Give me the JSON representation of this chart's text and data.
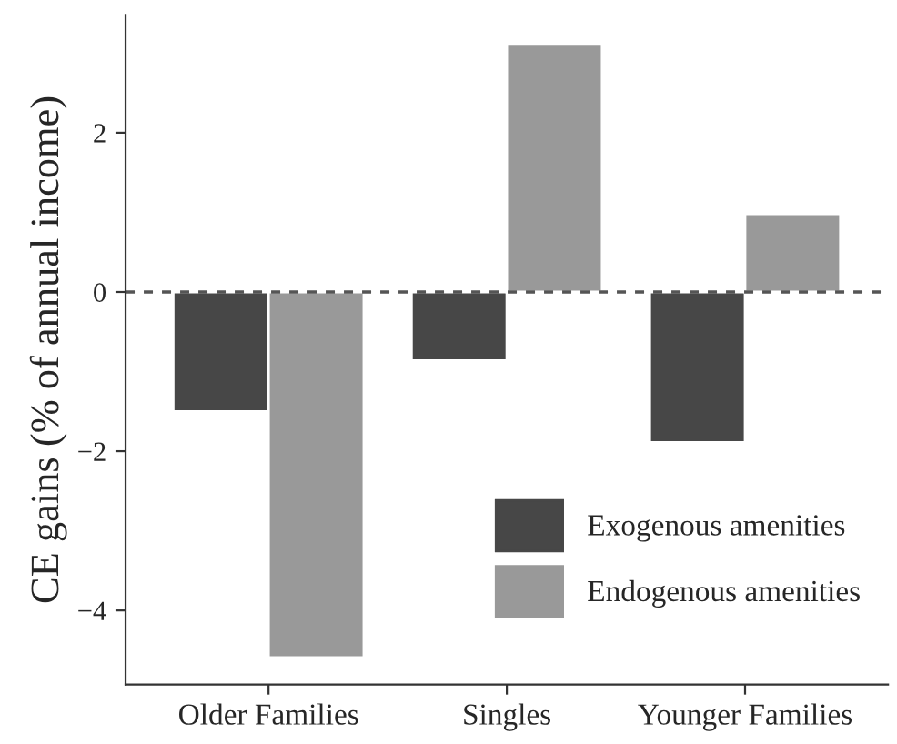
{
  "chart_data": {
    "type": "bar",
    "ylabel": "CE gains (% of annual income)",
    "categories": [
      "Older Families",
      "Singles",
      "Younger Families"
    ],
    "series": [
      {
        "name": "Exogenous amenities",
        "color": "#474747",
        "values": [
          -1.5,
          -0.86,
          -1.89
        ]
      },
      {
        "name": "Endogenous amenities",
        "color": "#999999",
        "values": [
          -4.59,
          3.11,
          0.98
        ]
      }
    ],
    "ylim": [
      -4.93,
      3.48
    ],
    "yticks": [
      {
        "value": -4,
        "label": "−4"
      },
      {
        "value": -2,
        "label": "−2"
      },
      0,
      2
    ],
    "ref_lines": [
      {
        "axis": "y",
        "value": 0,
        "color": "#555555",
        "line_style": "dashed"
      }
    ],
    "grid": false,
    "legend": "bottom right"
  }
}
